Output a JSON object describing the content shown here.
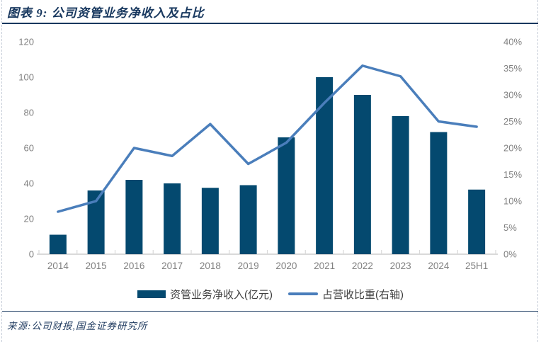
{
  "header": {
    "title": "图表 9: 公司资管业务净收入及占比"
  },
  "legend": {
    "bars_label": "资管业务净收入(亿元)",
    "line_label": "占营收比重(右轴)"
  },
  "footer": {
    "source": "来源:公司财报,国金证券研究所"
  },
  "colors": {
    "bar": "#04496F",
    "line": "#4A7EBB",
    "title": "#17375E",
    "axis_text": "#808080",
    "axis_line": "#D9D9D9",
    "legend_text": "#3F3F3F"
  },
  "chart_data": {
    "type": "bar",
    "subtype": "combo-bar-line-dual-axis",
    "title": "图表 9: 公司资管业务净收入及占比",
    "categories": [
      "2014",
      "2015",
      "2016",
      "2017",
      "2018",
      "2019",
      "2020",
      "2021",
      "2022",
      "2023",
      "2024",
      "25H1"
    ],
    "series": [
      {
        "name": "资管业务净收入(亿元)",
        "type": "bar",
        "axis": "left",
        "values": [
          11,
          36,
          42,
          40,
          37.5,
          39,
          66,
          100,
          90,
          78,
          69,
          36.5
        ]
      },
      {
        "name": "占营收比重(右轴)",
        "type": "line",
        "axis": "right",
        "values": [
          8,
          10,
          20,
          18.5,
          24.5,
          17,
          21,
          28.5,
          35.5,
          33.5,
          25,
          24
        ]
      }
    ],
    "left_axis": {
      "min": 0,
      "max": 120,
      "step": 20,
      "ticks": [
        "0",
        "20",
        "40",
        "60",
        "80",
        "100",
        "120"
      ]
    },
    "right_axis": {
      "min": 0,
      "max": 40,
      "step": 5,
      "ticks": [
        "0%",
        "5%",
        "10%",
        "15%",
        "20%",
        "25%",
        "30%",
        "35%",
        "40%"
      ]
    },
    "grid": false,
    "legend_position": "bottom"
  }
}
